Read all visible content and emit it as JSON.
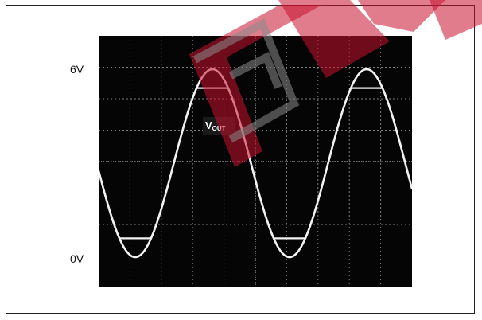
{
  "chart_data": {
    "type": "line",
    "ylabels": {
      "top": "6V",
      "bottom": "0V"
    },
    "ylim": [
      0,
      6
    ],
    "grid": true,
    "trace_label": {
      "main": "V",
      "sub": "OUT"
    },
    "series": [
      {
        "kind": "input_sine",
        "min": 0,
        "max": 6,
        "cycles_visible": 2.2
      },
      {
        "kind": "output_clipped",
        "low_clip": 0.6,
        "high_clip": 5.4
      }
    ],
    "colors": {
      "trace": "#f2f2f2",
      "background": "#050505",
      "grid": "#cfcfcf",
      "watermark": "#c8102e"
    }
  }
}
